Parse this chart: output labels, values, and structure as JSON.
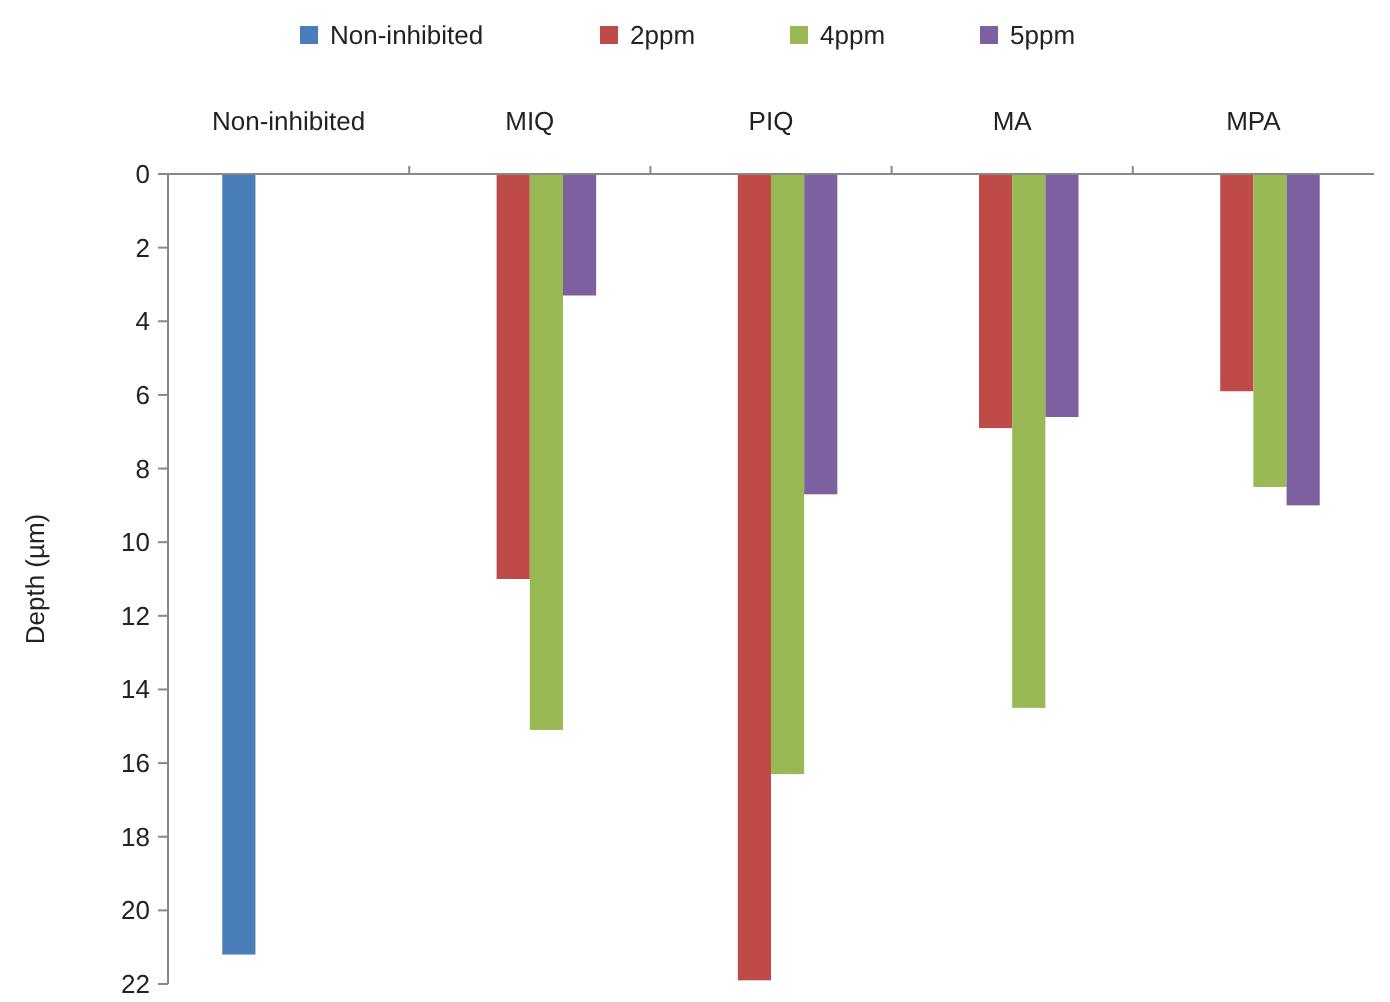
{
  "chart_data": {
    "type": "bar",
    "ylabel": "Depth (µm)",
    "categories": [
      "Non-inhibited",
      "MIQ",
      "PIQ",
      "MA",
      "MPA"
    ],
    "series": [
      {
        "name": "Non-inhibited",
        "color": "#4a7ebb",
        "values": [
          21.2,
          null,
          null,
          null,
          null
        ]
      },
      {
        "name": "2ppm",
        "color": "#be4b48",
        "values": [
          null,
          11.0,
          21.9,
          6.9,
          5.9
        ]
      },
      {
        "name": "4ppm",
        "color": "#98b954",
        "values": [
          null,
          15.1,
          16.3,
          14.5,
          8.5
        ]
      },
      {
        "name": "5ppm",
        "color": "#7d60a0",
        "values": [
          null,
          3.3,
          8.7,
          6.6,
          9.0
        ]
      }
    ],
    "ylim": [
      22,
      0
    ],
    "yticks": [
      0,
      2,
      4,
      6,
      8,
      10,
      12,
      14,
      16,
      18,
      20,
      22
    ],
    "grid": false,
    "legend": "top"
  }
}
